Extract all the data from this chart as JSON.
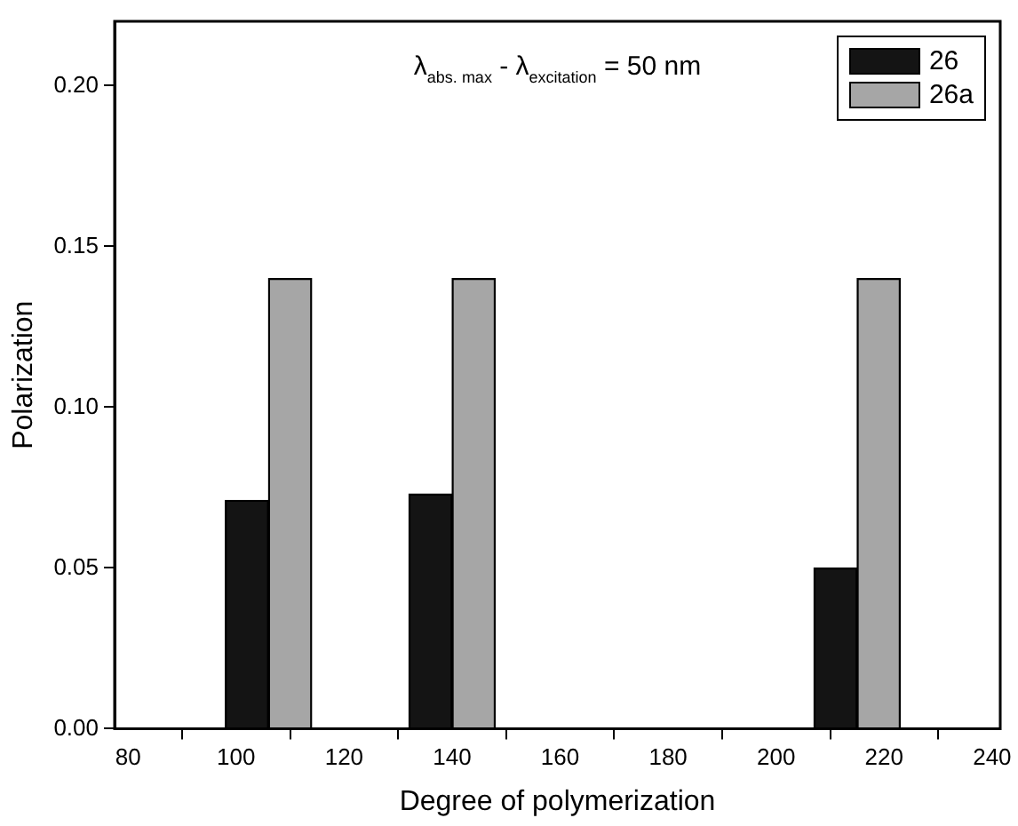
{
  "chart_data": {
    "type": "bar",
    "xlabel": "Degree of polymerization",
    "ylabel": "Polarization",
    "annotations": [
      "λ$_{abs. max}$ - λ$_{excitation}$ = 50 nm"
    ],
    "series": [
      {
        "name": "26",
        "color": "#141414",
        "values": [
          0.071,
          0.073,
          0.05
        ]
      },
      {
        "name": "26a",
        "color": "#a6a6a6",
        "values": [
          0.14,
          0.14,
          0.14
        ]
      }
    ],
    "x": [
      106,
      140,
      215
    ],
    "xlim": [
      77.5,
      241.5
    ],
    "xticks": [
      80,
      100,
      120,
      140,
      160,
      180,
      200,
      220,
      240
    ],
    "ylim": [
      0,
      0.22
    ],
    "yticks": [
      {
        "value": 0,
        "label": "0.00"
      },
      0.05,
      {
        "value": 0.1,
        "label": "0.10"
      },
      0.15,
      {
        "value": 0.2,
        "label": "0.20"
      }
    ],
    "grid": false,
    "legend": "top right"
  }
}
